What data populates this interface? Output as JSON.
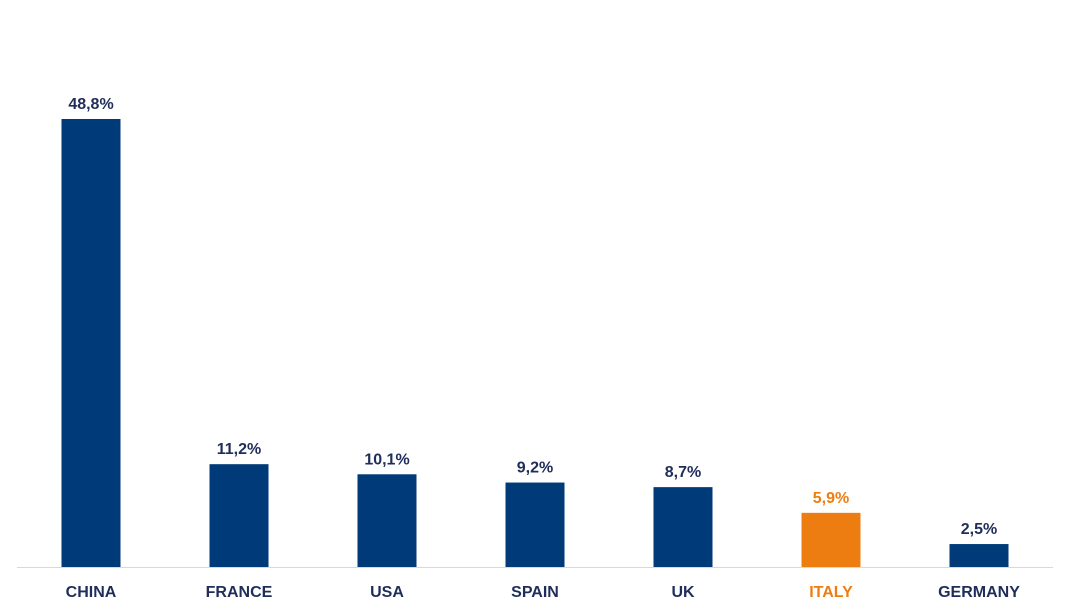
{
  "chart_data": {
    "type": "bar",
    "title": "",
    "xlabel": "",
    "ylabel": "",
    "categories": [
      "CHINA",
      "FRANCE",
      "USA",
      "SPAIN",
      "UK",
      "ITALY",
      "GERMANY"
    ],
    "values": [
      48.8,
      11.2,
      10.1,
      9.2,
      8.7,
      5.9,
      2.5
    ],
    "data_labels": [
      "48,8%",
      "11,2%",
      "10,1%",
      "9,2%",
      "8,7%",
      "5,9%",
      "2,5%"
    ],
    "bar_colors": [
      "#003A78",
      "#003A78",
      "#003A78",
      "#003A78",
      "#003A78",
      "#EE7D11",
      "#003A78"
    ],
    "label_colors": [
      "#1F2D5A",
      "#1F2D5A",
      "#1F2D5A",
      "#1F2D5A",
      "#1F2D5A",
      "#EE7D11",
      "#1F2D5A"
    ],
    "tick_label_colors": [
      "#1F2D5A",
      "#1F2D5A",
      "#1F2D5A",
      "#1F2D5A",
      "#1F2D5A",
      "#EE7D11",
      "#1F2D5A"
    ],
    "highlight_category": "ITALY",
    "ylim": [
      0,
      50
    ],
    "grid": false,
    "legend": "none",
    "baseline_color": "#D9D9D9"
  }
}
